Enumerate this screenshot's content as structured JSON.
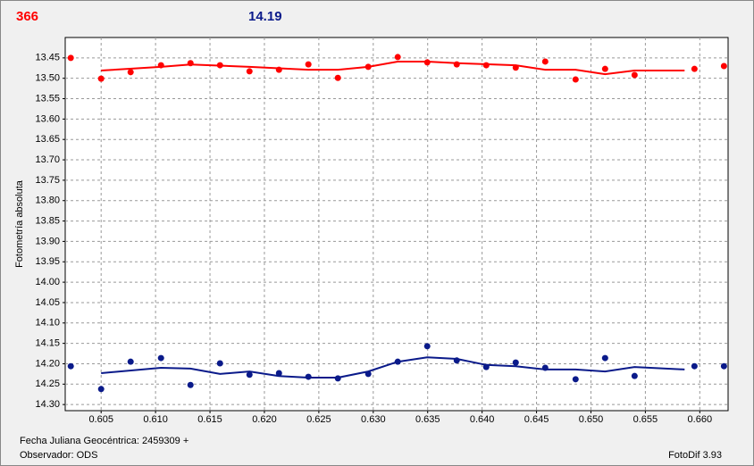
{
  "chart_data": {
    "type": "scatter",
    "header_left": "366",
    "header_left_color": "#ff0000",
    "header_right": "14.19",
    "header_right_color": "#0a1a8a",
    "ylabel": "Fotometría absoluta",
    "footer_date": "Fecha Juliana Geocéntrica: 2459309 +",
    "footer_observer": "Observador: ODS",
    "footer_software": "FotoDif 3.93",
    "xlim": [
      0.6017,
      0.6626
    ],
    "ylim": [
      13.4,
      14.315
    ],
    "y_inverted": true,
    "grid": true,
    "xticks": [
      0.605,
      {
        "value": 0.61,
        "label": "0.610"
      },
      0.615,
      {
        "value": 0.62,
        "label": "0.620"
      },
      0.625,
      {
        "value": 0.63,
        "label": "0.630"
      },
      0.635,
      {
        "value": 0.64,
        "label": "0.640"
      },
      0.645,
      {
        "value": 0.65,
        "label": "0.650"
      },
      0.655,
      {
        "value": 0.66,
        "label": "0.660"
      }
    ],
    "yticks": [
      13.45,
      {
        "value": 13.5,
        "label": "13.50"
      },
      13.55,
      {
        "value": 13.6,
        "label": "13.60"
      },
      13.65,
      {
        "value": 13.7,
        "label": "13.70"
      },
      13.75,
      {
        "value": 13.8,
        "label": "13.80"
      },
      13.85,
      {
        "value": 13.9,
        "label": "13.90"
      },
      13.95,
      {
        "value": 14,
        "label": "14.00"
      },
      14.05,
      {
        "value": 14.1,
        "label": "14.10"
      },
      14.15,
      {
        "value": 14.2,
        "label": "14.20"
      },
      14.25,
      {
        "value": 14.3,
        "label": "14.30"
      }
    ],
    "series": [
      {
        "type": "scatter",
        "color": "#ff0000",
        "x": [
          0.60221,
          0.605,
          0.60771,
          0.6105,
          0.61321,
          0.61592,
          0.61863,
          0.62134,
          0.62404,
          0.62675,
          0.62954,
          0.63225,
          0.63496,
          0.63767,
          0.64038,
          0.64309,
          0.6458,
          0.64859,
          0.6513,
          0.65401,
          0.65951,
          0.66222
        ],
        "values": [
          13.45,
          13.501,
          13.485,
          13.468,
          13.463,
          13.468,
          13.483,
          13.479,
          13.466,
          13.499,
          13.472,
          13.448,
          13.461,
          13.466,
          13.468,
          13.474,
          13.459,
          13.503,
          13.477,
          13.492,
          13.477,
          13.47
        ]
      },
      {
        "type": "line",
        "color": "#ff0000",
        "x": [
          0.605,
          0.6105,
          0.61321,
          0.61863,
          0.62404,
          0.62675,
          0.62954,
          0.63225,
          0.63496,
          0.63767,
          0.64309,
          0.6458,
          0.64859,
          0.6513,
          0.65401,
          0.6586
        ],
        "values": [
          13.481,
          13.472,
          13.466,
          13.472,
          13.479,
          13.479,
          13.472,
          13.459,
          13.459,
          13.463,
          13.468,
          13.479,
          13.479,
          13.49,
          13.481,
          13.481
        ]
      },
      {
        "type": "scatter",
        "color": "#0a1a8a",
        "x": [
          0.60221,
          0.605,
          0.60771,
          0.6105,
          0.61321,
          0.61592,
          0.61863,
          0.62134,
          0.62404,
          0.62675,
          0.62954,
          0.63225,
          0.63496,
          0.63767,
          0.64038,
          0.64309,
          0.6458,
          0.64859,
          0.6513,
          0.65401,
          0.65951,
          0.66222
        ],
        "values": [
          14.206,
          14.262,
          14.195,
          14.186,
          14.252,
          14.199,
          14.227,
          14.223,
          14.232,
          14.236,
          14.225,
          14.195,
          14.157,
          14.192,
          14.208,
          14.197,
          14.21,
          14.238,
          14.186,
          14.23,
          14.206,
          14.206
        ]
      },
      {
        "type": "line",
        "color": "#0a1a8a",
        "x": [
          0.605,
          0.6105,
          0.61321,
          0.61592,
          0.61863,
          0.62134,
          0.62404,
          0.62675,
          0.62954,
          0.63225,
          0.63496,
          0.63767,
          0.64038,
          0.64309,
          0.6458,
          0.64859,
          0.6513,
          0.65401,
          0.6586
        ],
        "values": [
          14.223,
          14.21,
          14.212,
          14.225,
          14.219,
          14.23,
          14.234,
          14.234,
          14.219,
          14.195,
          14.184,
          14.188,
          14.203,
          14.206,
          14.214,
          14.214,
          14.219,
          14.208,
          14.214
        ]
      }
    ]
  }
}
